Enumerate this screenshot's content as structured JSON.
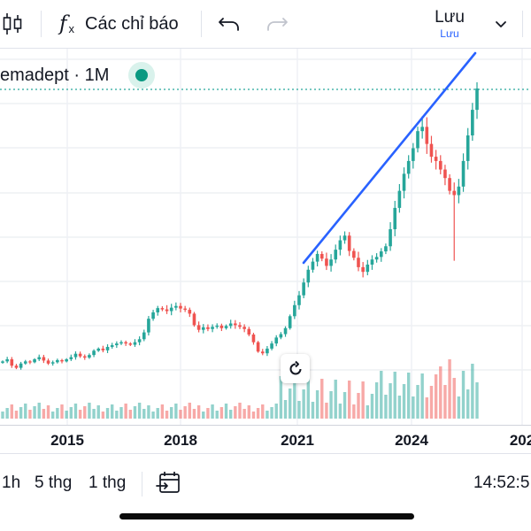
{
  "toolbar": {
    "indicators_label": "Các chỉ báo",
    "save_label": "Lưu",
    "save_sublabel": "Lưu"
  },
  "legend": {
    "symbol": "emadept · 1M"
  },
  "x_axis": {
    "ticks": [
      "2015",
      "2018",
      "2021",
      "2024",
      "202"
    ]
  },
  "bottombar": {
    "ranges": [
      "1h",
      "5 thg",
      "1 thg"
    ],
    "time": "14:52:5"
  },
  "colors": {
    "up": "#26a69a",
    "down": "#ef5350",
    "trendline": "#2962ff",
    "last_price_line": "#26a69a"
  },
  "chart_data": {
    "type": "candlestick",
    "interval": "1M",
    "x_ticks": [
      "2015",
      "2018",
      "2021",
      "2024",
      "202"
    ],
    "trendline": true,
    "series": [
      {
        "name": "price",
        "note": "estimated monthly path, relative units",
        "values": [
          16,
          16.5,
          15,
          14.5,
          15.5,
          16,
          15.8,
          16.5,
          17,
          16.2,
          15.5,
          15.8,
          16.3,
          16,
          16.5,
          17,
          17.8,
          17.2,
          16.9,
          17.5,
          18.5,
          19,
          18.6,
          19.4,
          19.8,
          20.2,
          20.5,
          20.2,
          19.9,
          20.5,
          21.2,
          22.8,
          26,
          27.5,
          28.5,
          28.2,
          27.8,
          28.6,
          29,
          28.4,
          28.1,
          27.2,
          24.5,
          23.4,
          24,
          23.6,
          24.1,
          24.4,
          23.8,
          24.3,
          24.9,
          24.5,
          24.1,
          23.6,
          22.3,
          20.5,
          18.3,
          17.9,
          19,
          20.2,
          21.6,
          22.4,
          23.8,
          26.6,
          29.2,
          31.5,
          34.5,
          37.5,
          39.4,
          41.2,
          40.1,
          38.4,
          39.9,
          42.2,
          44.4,
          45.5,
          41.9,
          40.3,
          38.1,
          37,
          38.7,
          39.9,
          40.5,
          41.8,
          43,
          47,
          52,
          56,
          60,
          63,
          66,
          70,
          71,
          67,
          64,
          63,
          61,
          59,
          56,
          55,
          57,
          63,
          69,
          75,
          80
        ]
      },
      {
        "name": "volume",
        "note": "relative bar heights",
        "values": []
      }
    ]
  }
}
